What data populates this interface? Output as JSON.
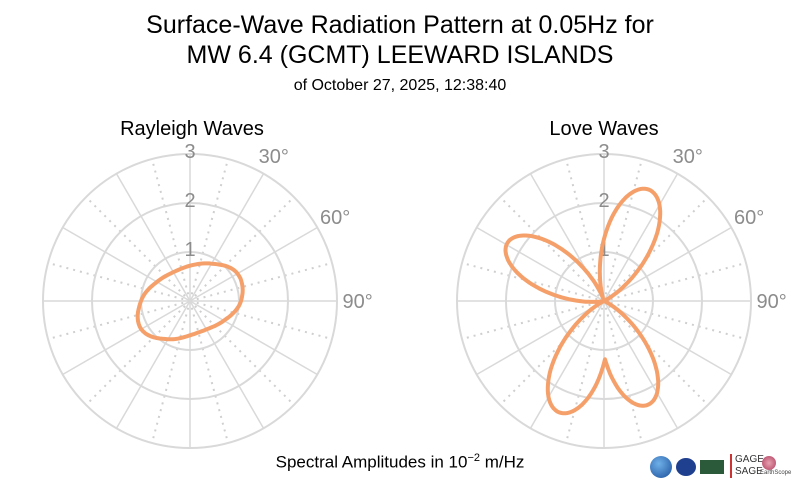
{
  "title_line1": "Surface-Wave Radiation Pattern at 0.05Hz for",
  "title_line2": "MW 6.4 (GCMT) LEEWARD ISLANDS",
  "subtitle": "of October 27, 2025, 12:38:40",
  "footer_prefix": "Spectral Amplitudes in ",
  "footer_power_base": "10",
  "footer_exponent": "−2",
  "footer_unit": " m/Hz",
  "logos": {
    "gage_line1": "GAGE",
    "gage_line2": "SAGE",
    "earthscope": "EarthScope"
  },
  "colors": {
    "curve": "#f5a06a",
    "grid_major": "#d9d9d9",
    "grid_minor": "#cfcfcf",
    "tick_label": "#8c8c8c"
  },
  "chart_data": [
    {
      "type": "polar-line",
      "title": "Rayleigh Waves",
      "r_ticks": [
        1,
        2,
        3
      ],
      "r_tick_labels": [
        "1",
        "2",
        "3"
      ],
      "rlim": [
        0,
        3
      ],
      "theta_ticks_deg": [
        30,
        60,
        90
      ],
      "theta_tick_labels": [
        "30°",
        "60°",
        "90°"
      ],
      "theta_zero": "top",
      "theta_direction": "clockwise",
      "theta_deg": [
        0,
        30,
        60,
        90,
        120,
        150,
        180,
        210,
        240,
        270,
        300,
        330
      ],
      "r": [
        0.72,
        0.88,
        1.12,
        1.04,
        0.8,
        0.67,
        0.7,
        0.9,
        1.15,
        1.0,
        0.78,
        0.68
      ]
    },
    {
      "type": "polar-line",
      "title": "Love Waves",
      "r_ticks": [
        1,
        2,
        3
      ],
      "r_tick_labels": [
        "1",
        "2",
        "3"
      ],
      "rlim": [
        0,
        3
      ],
      "theta_ticks_deg": [
        30,
        60,
        90
      ],
      "theta_tick_labels": [
        "30°",
        "60°",
        "90°"
      ],
      "theta_zero": "top",
      "theta_direction": "clockwise",
      "lobe_centers_deg": [
        22,
        157,
        202,
        301
      ],
      "lobe_peaks": [
        2.45,
        2.3,
        2.45,
        2.3
      ],
      "lobe_shape_power": 2
    }
  ]
}
